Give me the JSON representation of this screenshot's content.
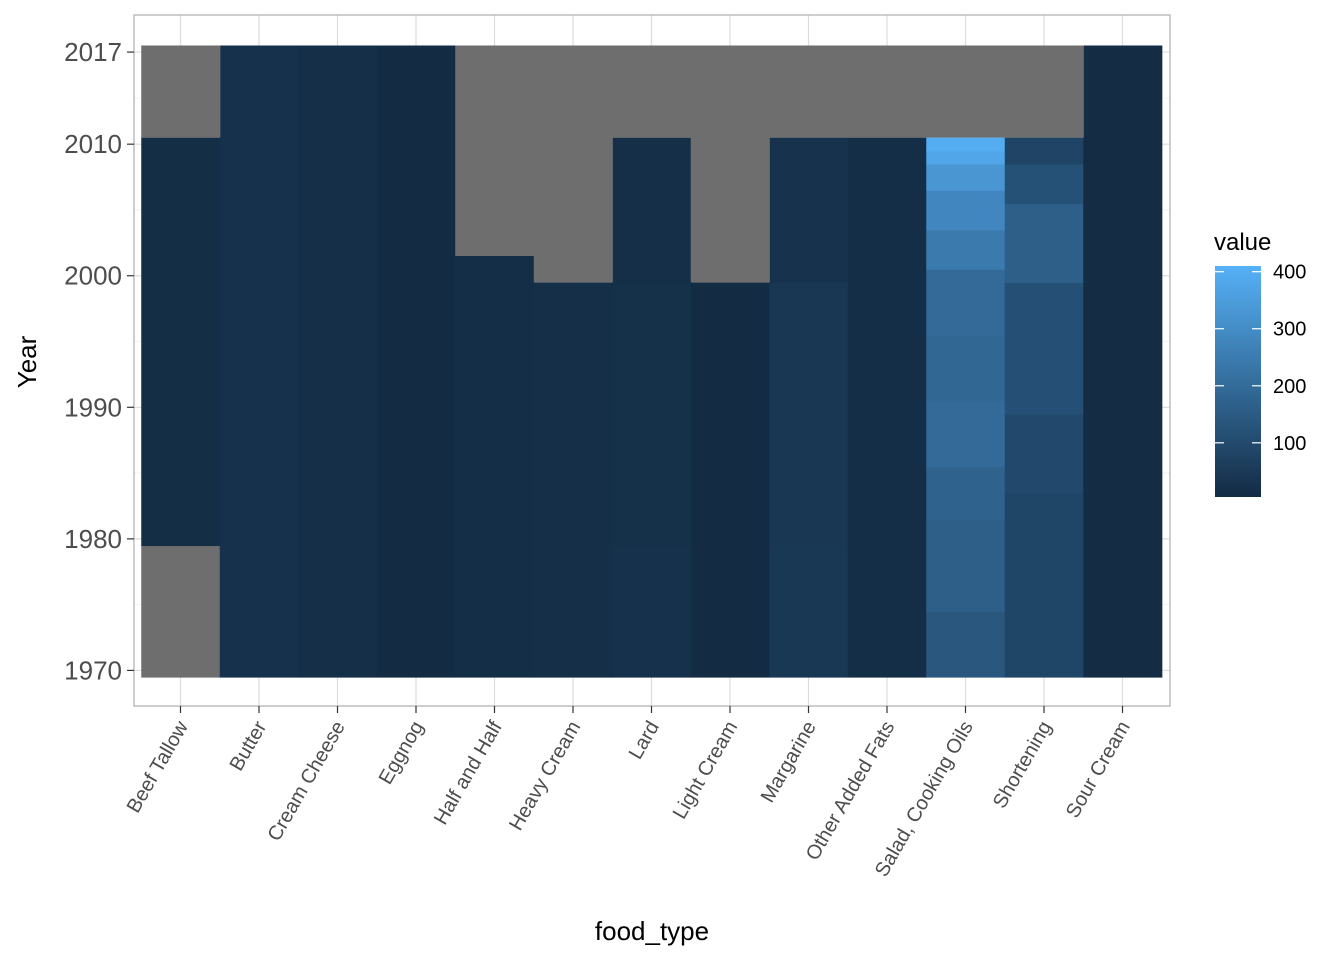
{
  "chart_data": {
    "type": "heatmap",
    "title": "",
    "xlabel": "food_type",
    "ylabel": "Year",
    "x_categories": [
      "Beef Tallow",
      "Butter",
      "Cream Cheese",
      "Eggnog",
      "Half and Half",
      "Heavy Cream",
      "Lard",
      "Light Cream",
      "Margarine",
      "Other Added Fats",
      "Salad, Cooking Oils",
      "Shortening",
      "Sour Cream"
    ],
    "y_range": [
      1970,
      2017
    ],
    "y_ticks": [
      1970,
      1980,
      1990,
      2000,
      2010,
      2017
    ],
    "y_tick_labels": [
      "1970",
      "1980",
      "1990",
      "2000",
      "2010",
      "2017"
    ],
    "color_scale": {
      "title": "value",
      "low": "#132B43",
      "high": "#56B1F7",
      "min": 0,
      "max": 425,
      "ticks": [
        100,
        200,
        300,
        400
      ],
      "tick_labels": [
        "100",
        "200",
        "300",
        "400"
      ],
      "na_color": "#6E6E6E"
    },
    "series": [
      {
        "name": "Beef Tallow",
        "segments": [
          {
            "from": 1970,
            "to": 1979,
            "value": null
          },
          {
            "from": 1980,
            "to": 2010,
            "value": 8
          }
        ]
      },
      {
        "name": "Butter",
        "segments": [
          {
            "from": 1970,
            "to": 2017,
            "value": 18
          }
        ]
      },
      {
        "name": "Cream Cheese",
        "segments": [
          {
            "from": 1970,
            "to": 2017,
            "value": 12
          }
        ]
      },
      {
        "name": "Eggnog",
        "segments": [
          {
            "from": 1970,
            "to": 2017,
            "value": 3
          }
        ]
      },
      {
        "name": "Half and Half",
        "segments": [
          {
            "from": 1970,
            "to": 2001,
            "value": 10
          }
        ]
      },
      {
        "name": "Heavy Cream",
        "segments": [
          {
            "from": 1970,
            "to": 1999,
            "value": 12
          }
        ]
      },
      {
        "name": "Lard",
        "segments": [
          {
            "from": 1970,
            "to": 1979,
            "value": 20
          },
          {
            "from": 1980,
            "to": 1999,
            "value": 15
          },
          {
            "from": 2000,
            "to": 2010,
            "value": 13
          }
        ]
      },
      {
        "name": "Light Cream",
        "segments": [
          {
            "from": 1970,
            "to": 1999,
            "value": 3
          }
        ]
      },
      {
        "name": "Margarine",
        "segments": [
          {
            "from": 1970,
            "to": 1979,
            "value": 40
          },
          {
            "from": 1980,
            "to": 1999,
            "value": 35
          },
          {
            "from": 2000,
            "to": 2010,
            "value": 22
          }
        ]
      },
      {
        "name": "Other Added Fats",
        "segments": [
          {
            "from": 1970,
            "to": 2010,
            "value": 10
          }
        ]
      },
      {
        "name": "Salad, Cooking Oils",
        "segments": [
          {
            "from": 1970,
            "to": 1974,
            "value": 140
          },
          {
            "from": 1975,
            "to": 1981,
            "value": 165
          },
          {
            "from": 1982,
            "to": 1985,
            "value": 175
          },
          {
            "from": 1986,
            "to": 1990,
            "value": 200
          },
          {
            "from": 1991,
            "to": 1995,
            "value": 190
          },
          {
            "from": 1996,
            "to": 2000,
            "value": 200
          },
          {
            "from": 2001,
            "to": 2003,
            "value": 250
          },
          {
            "from": 2004,
            "to": 2006,
            "value": 290
          },
          {
            "from": 2007,
            "to": 2008,
            "value": 340
          },
          {
            "from": 2009,
            "to": 2009,
            "value": 390
          },
          {
            "from": 2010,
            "to": 2010,
            "value": 410
          }
        ]
      },
      {
        "name": "Shortening",
        "segments": [
          {
            "from": 1970,
            "to": 1983,
            "value": 85
          },
          {
            "from": 1984,
            "to": 1989,
            "value": 95
          },
          {
            "from": 1990,
            "to": 1999,
            "value": 115
          },
          {
            "from": 2000,
            "to": 2005,
            "value": 165
          },
          {
            "from": 2006,
            "to": 2008,
            "value": 120
          },
          {
            "from": 2009,
            "to": 2010,
            "value": 80
          }
        ]
      },
      {
        "name": "Sour Cream",
        "segments": [
          {
            "from": 1970,
            "to": 2017,
            "value": 5
          }
        ]
      }
    ]
  }
}
